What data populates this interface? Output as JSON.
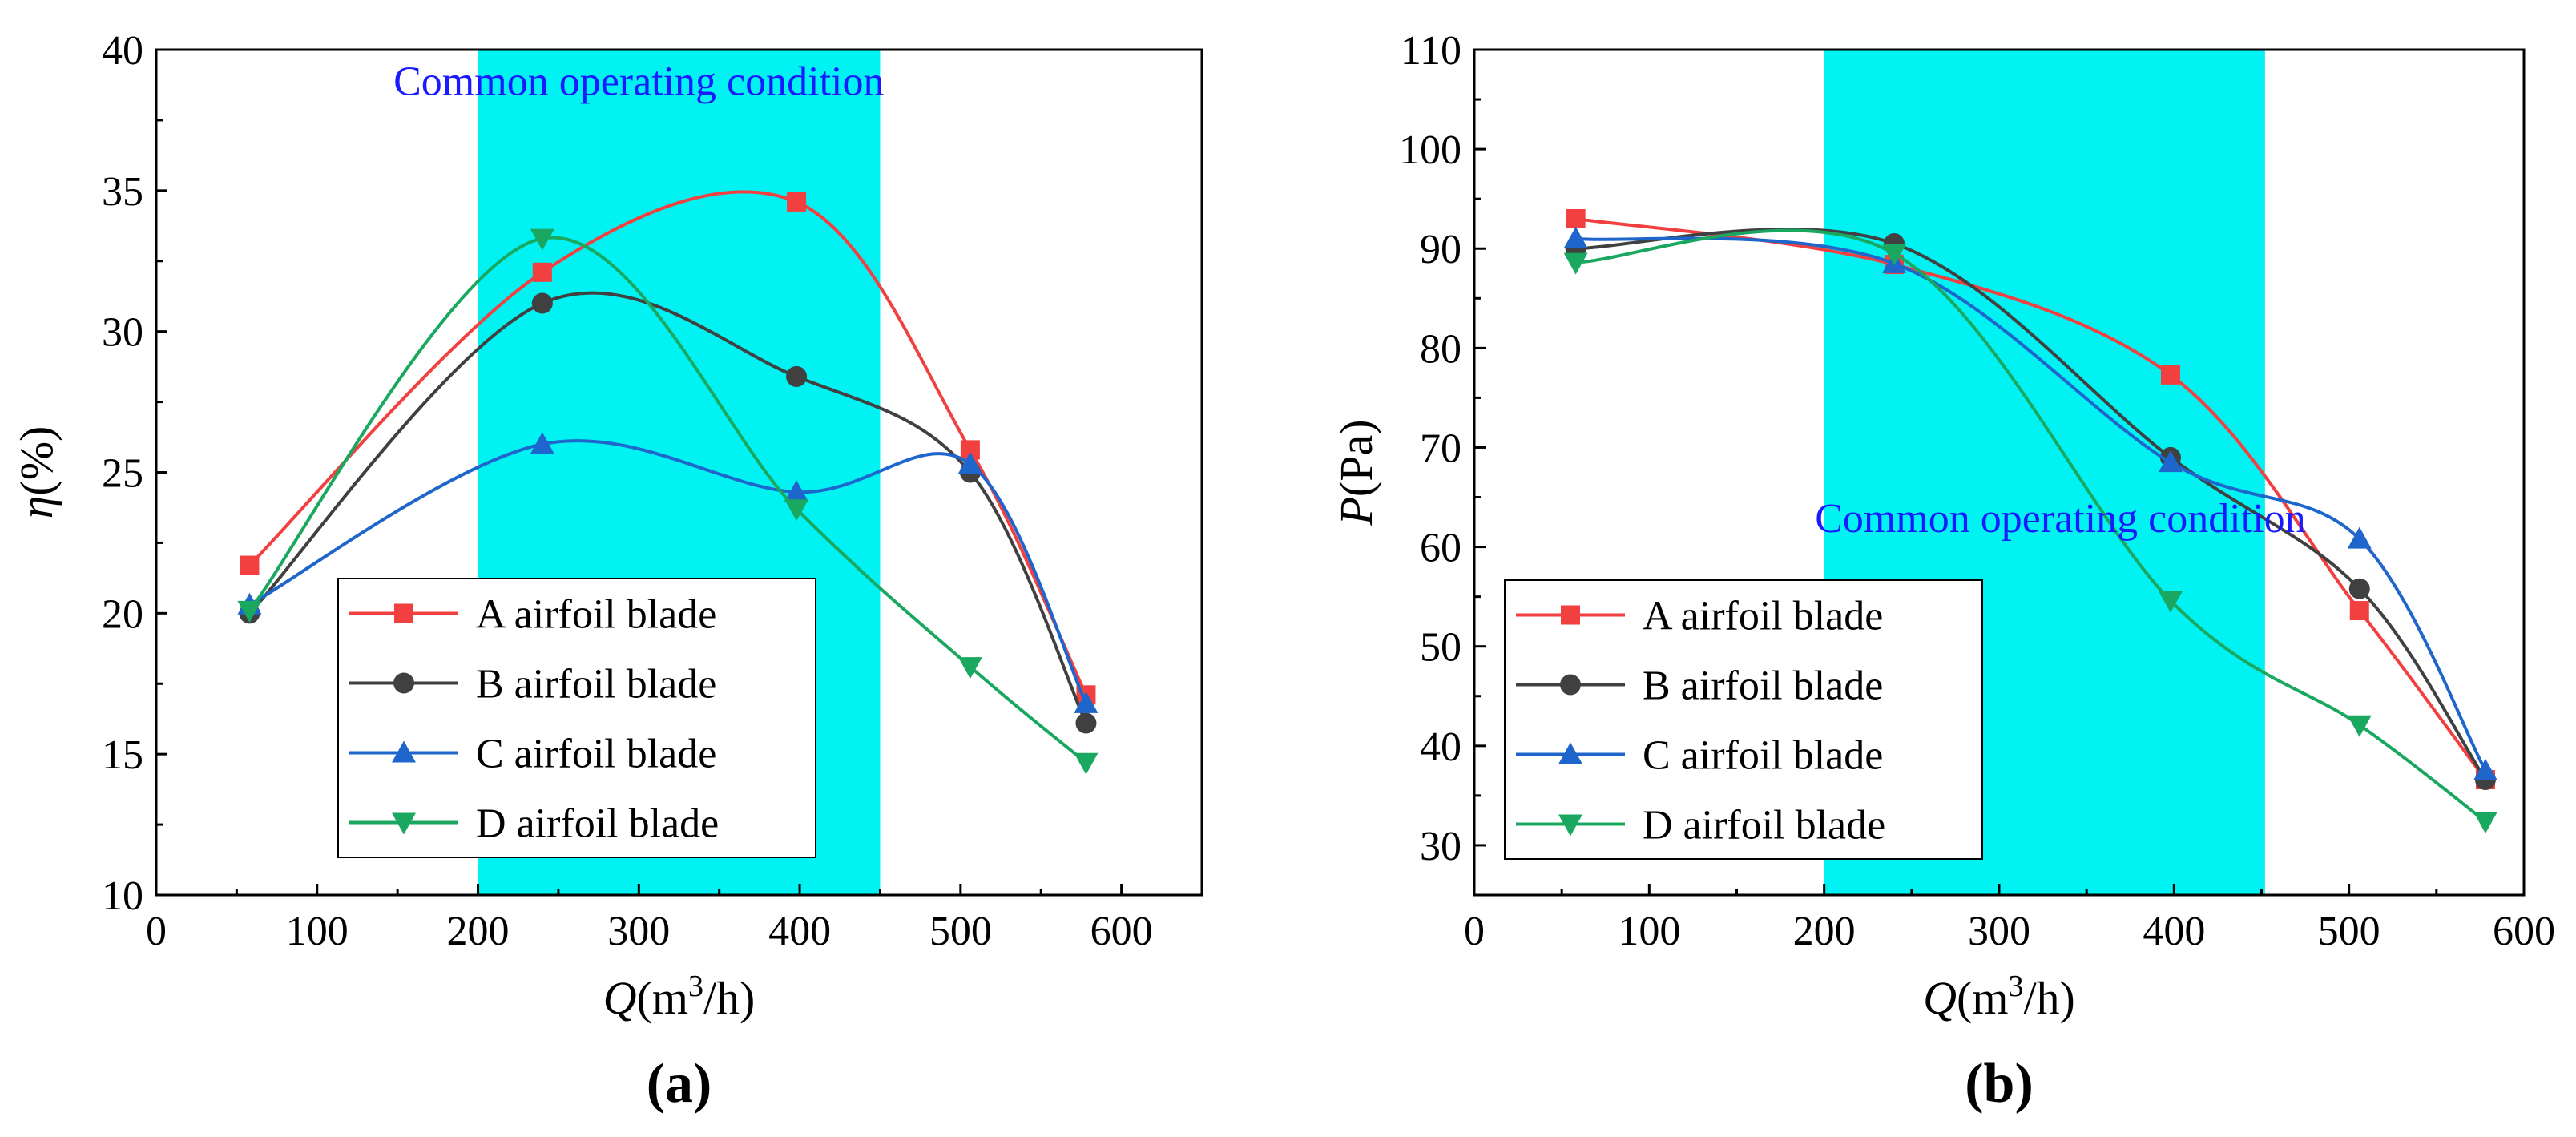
{
  "chart_data": [
    {
      "type": "line",
      "panel_label": "(a)",
      "ylabel_symbol": "η",
      "ylabel_unit": "(%)",
      "xlabel_symbol": "Q",
      "xlabel_unit_pre": "(m",
      "xlabel_unit_sup": "3",
      "xlabel_unit_post": "/h)",
      "xlim": [
        0,
        650
      ],
      "ylim": [
        10,
        40
      ],
      "xticks": [
        0,
        100,
        200,
        300,
        400,
        500,
        600
      ],
      "yticks": [
        10,
        15,
        20,
        25,
        30,
        35,
        40
      ],
      "shaded_region": {
        "x": [
          200,
          450
        ],
        "color": "#00f2f2"
      },
      "annotation": {
        "text": "Common operating condition",
        "x": 300,
        "y": 38.4
      },
      "legend_placement": "bottom-center",
      "grid": false,
      "series": [
        {
          "name": "A airfoil blade",
          "color": "#f24040",
          "marker": "square",
          "x": [
            58,
            240,
            398,
            506,
            578
          ],
          "y": [
            21.7,
            32.1,
            34.6,
            25.8,
            17.1
          ]
        },
        {
          "name": "B airfoil blade",
          "color": "#404040",
          "marker": "circle",
          "x": [
            58,
            240,
            398,
            506,
            578
          ],
          "y": [
            20.0,
            31.0,
            28.4,
            25.0,
            16.1
          ]
        },
        {
          "name": "C airfoil blade",
          "color": "#1f66cc",
          "marker": "triangle-up",
          "x": [
            58,
            240,
            398,
            506,
            578
          ],
          "y": [
            20.3,
            26.0,
            24.3,
            25.3,
            16.8
          ]
        },
        {
          "name": "D airfoil blade",
          "color": "#1aa860",
          "marker": "triangle-down",
          "x": [
            58,
            240,
            398,
            506,
            578
          ],
          "y": [
            20.1,
            33.3,
            23.7,
            18.1,
            14.7
          ]
        }
      ]
    },
    {
      "type": "line",
      "panel_label": "(b)",
      "ylabel_symbol": "P",
      "ylabel_unit": "(Pa)",
      "xlabel_symbol": "Q",
      "xlabel_unit_pre": "(m",
      "xlabel_unit_sup": "3",
      "xlabel_unit_post": "/h)",
      "xlim": [
        0,
        600
      ],
      "ylim": [
        25,
        110
      ],
      "xticks": [
        0,
        100,
        200,
        300,
        400,
        500,
        600
      ],
      "yticks": [
        30,
        40,
        50,
        60,
        70,
        80,
        90,
        100,
        110
      ],
      "shaded_region": {
        "x": [
          200,
          452
        ],
        "color": "#00f2f2"
      },
      "annotation": {
        "text": "Common operating condition",
        "x": 335,
        "y": 61.5
      },
      "legend_placement": "bottom-left",
      "grid": false,
      "series": [
        {
          "name": "A airfoil blade",
          "color": "#f24040",
          "marker": "square",
          "x": [
            58,
            240,
            398,
            506,
            578
          ],
          "y": [
            93.0,
            88.4,
            77.3,
            53.6,
            36.6
          ]
        },
        {
          "name": "B airfoil blade",
          "color": "#404040",
          "marker": "circle",
          "x": [
            58,
            240,
            398,
            506,
            578
          ],
          "y": [
            90.0,
            90.5,
            69.0,
            55.8,
            36.6
          ]
        },
        {
          "name": "C airfoil blade",
          "color": "#1f66cc",
          "marker": "triangle-up",
          "x": [
            58,
            240,
            398,
            506,
            578
          ],
          "y": [
            91.0,
            88.5,
            68.5,
            60.8,
            37.5
          ]
        },
        {
          "name": "D airfoil blade",
          "color": "#1aa860",
          "marker": "triangle-down",
          "x": [
            58,
            240,
            398,
            506,
            578
          ],
          "y": [
            88.6,
            89.5,
            54.6,
            42.1,
            32.4
          ]
        }
      ]
    }
  ]
}
